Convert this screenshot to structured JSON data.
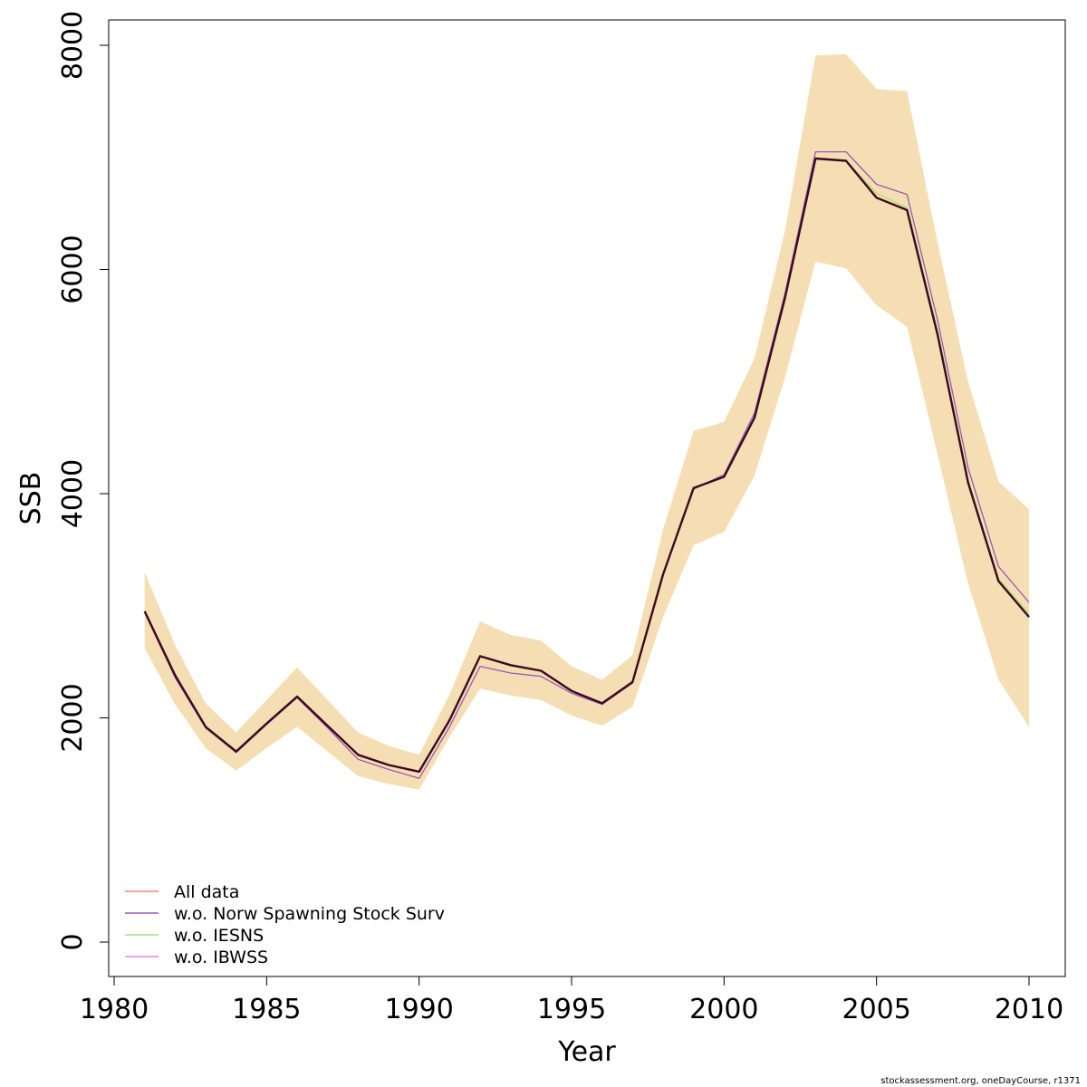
{
  "chart_data": {
    "type": "line",
    "xlabel": "Year",
    "ylabel": "SSB",
    "xlim": [
      1980,
      2010
    ],
    "ylim": [
      0,
      8000
    ],
    "x_ticks": [
      1980,
      1985,
      1990,
      1995,
      2000,
      2005,
      2010
    ],
    "y_ticks": [
      0,
      2000,
      4000,
      6000,
      8000
    ],
    "legend_position": "bottom-left",
    "grid": false,
    "x": [
      1981,
      1982,
      1983,
      1984,
      1985,
      1986,
      1987,
      1988,
      1989,
      1990,
      1991,
      1992,
      1993,
      1994,
      1995,
      1996,
      1997,
      1998,
      1999,
      2000,
      2001,
      2002,
      2003,
      2004,
      2005,
      2006,
      2007,
      2008,
      2009,
      2010
    ],
    "band": {
      "color": "#f5deb3",
      "lower": [
        2620,
        2120,
        1730,
        1530,
        1730,
        1920,
        1700,
        1480,
        1410,
        1360,
        1830,
        2260,
        2200,
        2160,
        2020,
        1930,
        2100,
        2900,
        3540,
        3660,
        4160,
        5040,
        6070,
        6010,
        5680,
        5490,
        4350,
        3200,
        2340,
        1920
      ],
      "upper": [
        3300,
        2650,
        2130,
        1870,
        2160,
        2450,
        2160,
        1870,
        1750,
        1670,
        2210,
        2860,
        2740,
        2690,
        2460,
        2340,
        2560,
        3680,
        4560,
        4640,
        5210,
        6350,
        7910,
        7920,
        7610,
        7590,
        6240,
        5000,
        4110,
        3860
      ]
    },
    "series": [
      {
        "name": "All data",
        "color": "#fa8072",
        "values": [
          2950,
          2380,
          1920,
          1700,
          1950,
          2190,
          1930,
          1670,
          1580,
          1520,
          1980,
          2550,
          2470,
          2420,
          2240,
          2130,
          2320,
          3280,
          4050,
          4150,
          4680,
          5750,
          6990,
          6970,
          6640,
          6530,
          5420,
          4100,
          3220,
          2900
        ]
      },
      {
        "name": "w.o. Norw Spawning Stock Surv",
        "color": "#9b59b6",
        "values": [
          2940,
          2360,
          1910,
          1690,
          1940,
          2180,
          1910,
          1630,
          1540,
          1460,
          1920,
          2460,
          2400,
          2370,
          2220,
          2120,
          2310,
          3280,
          4040,
          4170,
          4720,
          5790,
          7050,
          7050,
          6760,
          6670,
          5550,
          4230,
          3350,
          3030
        ]
      },
      {
        "name": "w.o. IESNS",
        "color": "#a8e07a",
        "values": [
          2950,
          2380,
          1920,
          1700,
          1950,
          2190,
          1930,
          1670,
          1580,
          1520,
          1980,
          2550,
          2470,
          2420,
          2240,
          2130,
          2320,
          3280,
          4050,
          4150,
          4680,
          5750,
          6990,
          6970,
          6680,
          6550,
          5450,
          4120,
          3240,
          2930
        ]
      },
      {
        "name": "w.o. IBWSS",
        "color": "#ee82ee",
        "values": [
          2950,
          2380,
          1920,
          1700,
          1950,
          2190,
          1930,
          1670,
          1580,
          1520,
          1980,
          2550,
          2470,
          2420,
          2240,
          2130,
          2320,
          3280,
          4050,
          4150,
          4680,
          5750,
          6990,
          6970,
          6640,
          6530,
          5420,
          4100,
          3220,
          2900
        ]
      },
      {
        "name": "",
        "color": "#3a0a1e",
        "values": [
          2950,
          2380,
          1920,
          1700,
          1950,
          2190,
          1930,
          1670,
          1580,
          1520,
          1980,
          2550,
          2470,
          2420,
          2240,
          2130,
          2320,
          3280,
          4050,
          4150,
          4680,
          5750,
          6990,
          6970,
          6640,
          6530,
          5420,
          4100,
          3220,
          2900
        ]
      }
    ]
  },
  "credit": "stockassessment.org, oneDayCourse, r1371"
}
